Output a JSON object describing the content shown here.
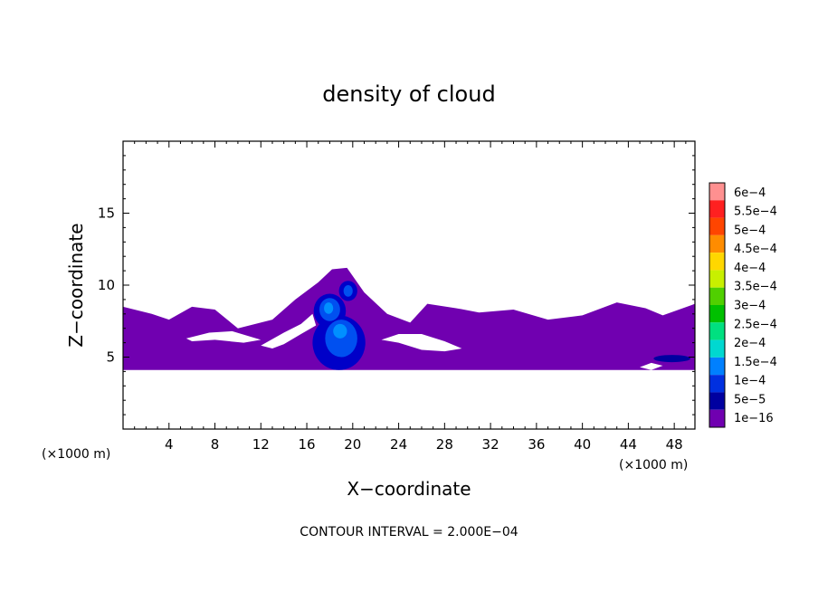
{
  "chart_data": {
    "type": "heatmap",
    "title": "density of cloud",
    "xlabel": "X−coordinate",
    "ylabel": "Z−coordinate",
    "x_unit_left": "(×1000 m)",
    "x_unit_right": "(×1000 m)",
    "xlim": [
      0,
      49.8
    ],
    "ylim": [
      0,
      20
    ],
    "x_ticks": [
      4,
      8,
      12,
      16,
      20,
      24,
      28,
      32,
      36,
      40,
      44,
      48
    ],
    "x_tick_labels": [
      "4",
      "8",
      "12",
      "16",
      "20",
      "24",
      "28",
      "32",
      "36",
      "40",
      "44",
      "48"
    ],
    "y_ticks": [
      5,
      10,
      15
    ],
    "y_tick_labels": [
      "5",
      "10",
      "15"
    ],
    "footer": "CONTOUR INTERVAL = 2.000E−04",
    "colorbar": {
      "labels": [
        "6e−4",
        "5.5e−4",
        "5e−4",
        "4.5e−4",
        "4e−4",
        "3.5e−4",
        "3e−4",
        "2.5e−4",
        "2e−4",
        "1.5e−4",
        "1e−4",
        "5e−5",
        "1e−16"
      ],
      "colors": [
        "#ff9090",
        "#ff2020",
        "#ff4500",
        "#ff8c00",
        "#ffd700",
        "#c8f000",
        "#50d000",
        "#00c000",
        "#00e080",
        "#00d8d0",
        "#0080ff",
        "#0030e0",
        "#0000a0",
        "#7000b0"
      ]
    },
    "layer": {
      "base_z": 4.1,
      "top_z": [
        [
          0,
          8.5
        ],
        [
          2.5,
          8.0
        ],
        [
          4,
          7.6
        ],
        [
          6,
          8.5
        ],
        [
          8,
          8.3
        ],
        [
          10,
          7.0
        ],
        [
          13,
          7.6
        ],
        [
          15,
          9.0
        ],
        [
          17,
          10.2
        ],
        [
          18.2,
          11.1
        ],
        [
          19.5,
          11.2
        ],
        [
          21,
          9.5
        ],
        [
          23,
          8.0
        ],
        [
          25,
          7.4
        ],
        [
          26.5,
          8.7
        ],
        [
          29,
          8.4
        ],
        [
          31,
          8.1
        ],
        [
          34,
          8.3
        ],
        [
          37,
          7.6
        ],
        [
          40,
          7.9
        ],
        [
          43,
          8.8
        ],
        [
          45.5,
          8.4
        ],
        [
          47,
          7.9
        ],
        [
          49.8,
          8.7
        ]
      ],
      "color": "#7000b0"
    },
    "clear_regions": [
      [
        [
          5.5,
          6.3
        ],
        [
          7.5,
          6.7
        ],
        [
          9.5,
          6.8
        ],
        [
          12,
          6.2
        ],
        [
          10.5,
          6.0
        ],
        [
          8,
          6.2
        ],
        [
          6,
          6.1
        ]
      ],
      [
        [
          12,
          5.8
        ],
        [
          14,
          6.7
        ],
        [
          15.5,
          7.3
        ],
        [
          16.5,
          8.0
        ],
        [
          16.8,
          7.2
        ],
        [
          15.5,
          6.6
        ],
        [
          14,
          5.9
        ],
        [
          13,
          5.6
        ]
      ],
      [
        [
          22.5,
          6.2
        ],
        [
          24,
          6.0
        ],
        [
          26,
          5.5
        ],
        [
          28,
          5.4
        ],
        [
          29.5,
          5.6
        ],
        [
          28,
          6.1
        ],
        [
          26,
          6.6
        ],
        [
          24,
          6.6
        ]
      ],
      [
        [
          45,
          4.3
        ],
        [
          46,
          4.6
        ],
        [
          47,
          4.4
        ],
        [
          46,
          4.1
        ]
      ]
    ],
    "cores": [
      {
        "x": 18.8,
        "z": 6.0,
        "rx": 2.3,
        "rz": 1.9,
        "color": "#0000c8"
      },
      {
        "x": 18.0,
        "z": 8.2,
        "rx": 1.4,
        "rz": 1.2,
        "color": "#0000c8"
      },
      {
        "x": 19.6,
        "z": 9.6,
        "rx": 0.8,
        "rz": 0.7,
        "color": "#0000c8"
      },
      {
        "x": 19.0,
        "z": 6.3,
        "rx": 1.4,
        "rz": 1.3,
        "color": "#0050f0"
      },
      {
        "x": 18.0,
        "z": 8.3,
        "rx": 0.9,
        "rz": 0.8,
        "color": "#0050f0"
      },
      {
        "x": 19.6,
        "z": 9.6,
        "rx": 0.4,
        "rz": 0.4,
        "color": "#0050f0"
      },
      {
        "x": 18.9,
        "z": 6.8,
        "rx": 0.6,
        "rz": 0.5,
        "color": "#0090ff"
      },
      {
        "x": 17.9,
        "z": 8.4,
        "rx": 0.4,
        "rz": 0.4,
        "color": "#0090ff"
      },
      {
        "x": 47.8,
        "z": 4.9,
        "rx": 1.6,
        "rz": 0.25,
        "color": "#0000a0"
      }
    ]
  }
}
